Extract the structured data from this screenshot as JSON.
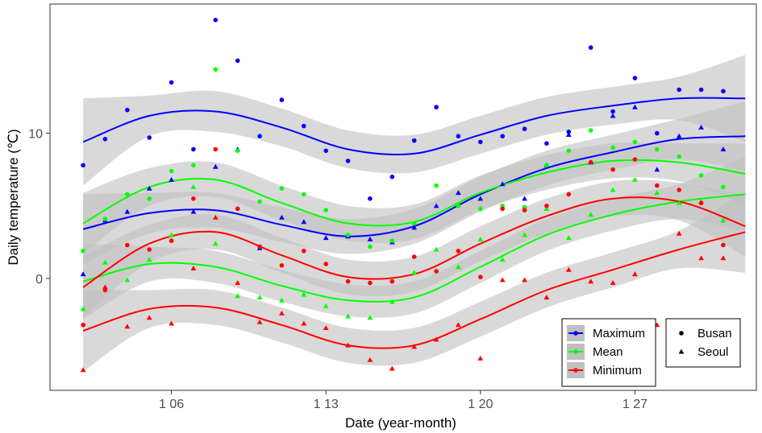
{
  "chart_data": {
    "type": "scatter",
    "title": "",
    "xlabel": "Date (year-month)",
    "ylabel": "Daily temperature (℃)",
    "x_ticks": [
      {
        "x": 6,
        "label": "1 06"
      },
      {
        "x": 13,
        "label": "1 13"
      },
      {
        "x": 20,
        "label": "1 20"
      },
      {
        "x": 27,
        "label": "1 27"
      }
    ],
    "y_ticks": [
      {
        "y": 0,
        "label": "0"
      },
      {
        "y": 10,
        "label": "10"
      }
    ],
    "xlim": [
      0.5,
      32.5
    ],
    "ylim": [
      -7.7,
      18.9
    ],
    "grid": false,
    "legend_placement": "bottom-right",
    "colors": {
      "Maximum": "#0000ff",
      "Mean": "#00ff00",
      "Minimum": "#ff0000",
      "band": "#bfbfbf"
    },
    "color_legend": [
      {
        "name": "Maximum",
        "color": "#0000ff"
      },
      {
        "name": "Mean",
        "color": "#00ff00"
      },
      {
        "name": "Minimum",
        "color": "#ff0000"
      }
    ],
    "shape_legend": [
      {
        "name": "Busan",
        "shape": "circle"
      },
      {
        "name": "Seoul",
        "shape": "triangle"
      }
    ],
    "points": [
      {
        "city": "Busan",
        "variable": "Maximum",
        "x": [
          2,
          3,
          4,
          5,
          6,
          7,
          8,
          9,
          10,
          11,
          12,
          13,
          14,
          15,
          16,
          17,
          18,
          19,
          20,
          21,
          22,
          23,
          24,
          25,
          26,
          27,
          28,
          29,
          30,
          31
        ],
        "y": [
          7.8,
          9.6,
          11.6,
          9.7,
          13.5,
          8.9,
          17.8,
          15.0,
          9.8,
          12.3,
          10.5,
          8.8,
          8.1,
          5.5,
          7.0,
          9.5,
          11.8,
          9.8,
          9.4,
          9.8,
          10.3,
          9.3,
          10.1,
          15.9,
          11.5,
          13.8,
          10.0,
          13.0,
          13.0,
          12.9
        ]
      },
      {
        "city": "Seoul",
        "variable": "Maximum",
        "x": [
          2,
          3,
          4,
          5,
          6,
          7,
          8,
          9,
          10,
          11,
          12,
          13,
          14,
          15,
          16,
          17,
          18,
          19,
          20,
          21,
          22,
          23,
          24,
          25,
          26,
          27,
          28,
          29,
          30,
          31
        ],
        "y": [
          0.3,
          4.0,
          4.6,
          6.2,
          6.8,
          4.6,
          7.7,
          8.9,
          2.1,
          4.2,
          3.9,
          2.8,
          2.9,
          2.7,
          2.5,
          3.5,
          5.0,
          5.9,
          5.5,
          6.5,
          5.5,
          7.8,
          9.9,
          8.0,
          11.2,
          11.8,
          7.5,
          9.8,
          10.4,
          8.9
        ]
      },
      {
        "city": "Busan",
        "variable": "Mean",
        "x": [
          2,
          3,
          4,
          5,
          6,
          7,
          8,
          9,
          10,
          11,
          12,
          13,
          14,
          15,
          16,
          17,
          18,
          19,
          20,
          21,
          22,
          23,
          24,
          25,
          26,
          27,
          28,
          29,
          30,
          31
        ],
        "y": [
          1.9,
          4.1,
          5.8,
          5.5,
          7.4,
          7.8,
          14.4,
          8.8,
          5.3,
          6.2,
          5.8,
          4.7,
          3.0,
          2.2,
          2.6,
          3.8,
          6.4,
          5.0,
          4.8,
          5.0,
          4.9,
          7.8,
          8.8,
          10.2,
          9.0,
          9.4,
          8.9,
          8.4,
          7.1,
          6.3
        ]
      },
      {
        "city": "Seoul",
        "variable": "Mean",
        "x": [
          2,
          3,
          4,
          5,
          6,
          7,
          8,
          9,
          10,
          11,
          12,
          13,
          14,
          15,
          16,
          17,
          18,
          19,
          20,
          21,
          22,
          23,
          24,
          25,
          26,
          27,
          28,
          29,
          30,
          31
        ],
        "y": [
          -2.1,
          1.1,
          -0.1,
          1.3,
          3.0,
          6.3,
          2.4,
          -1.2,
          -1.3,
          -1.5,
          -1.1,
          -1.9,
          -2.6,
          -2.7,
          -1.6,
          0.4,
          2.0,
          0.8,
          2.7,
          1.3,
          3.0,
          4.8,
          2.8,
          4.4,
          6.1,
          6.8,
          5.9,
          5.2,
          5.3,
          4.0
        ]
      },
      {
        "city": "Busan",
        "variable": "Minimum",
        "x": [
          2,
          3,
          4,
          5,
          6,
          7,
          8,
          9,
          10,
          11,
          12,
          13,
          14,
          15,
          16,
          17,
          18,
          19,
          20,
          21,
          22,
          23,
          24,
          25,
          26,
          27,
          28,
          29,
          30,
          31
        ],
        "y": [
          -3.2,
          -0.8,
          2.3,
          2.0,
          2.6,
          5.5,
          8.9,
          4.8,
          2.2,
          0.9,
          1.9,
          1.0,
          -0.2,
          -0.3,
          -0.2,
          1.5,
          0.5,
          1.9,
          0.1,
          4.8,
          4.7,
          5.0,
          5.8,
          8.0,
          7.5,
          8.2,
          6.4,
          6.1,
          5.2,
          2.3
        ]
      },
      {
        "city": "Seoul",
        "variable": "Minimum",
        "x": [
          2,
          3,
          4,
          5,
          6,
          7,
          8,
          9,
          10,
          11,
          12,
          13,
          14,
          15,
          16,
          17,
          18,
          19,
          20,
          21,
          22,
          23,
          24,
          25,
          26,
          27,
          28,
          29,
          30,
          31
        ],
        "y": [
          -6.3,
          -0.6,
          -3.3,
          -2.7,
          -3.1,
          0.7,
          4.2,
          -0.3,
          -3.0,
          -2.4,
          -3.1,
          -3.4,
          -4.6,
          -5.6,
          -6.2,
          -4.7,
          -4.2,
          -3.2,
          -5.5,
          -0.1,
          -0.1,
          -1.3,
          0.6,
          -0.2,
          -0.3,
          0.3,
          -3.2,
          3.1,
          1.4,
          1.4
        ]
      }
    ],
    "smooth_x": [
      2,
      5,
      8,
      11,
      14,
      17,
      20,
      23,
      26,
      29,
      32
    ],
    "smooth_series": [
      {
        "city": "Busan",
        "variable": "Maximum",
        "y": [
          9.4,
          11.2,
          11.5,
          10.4,
          8.9,
          8.6,
          9.9,
          11.2,
          11.9,
          12.4,
          12.4
        ],
        "ci": [
          3.0,
          1.4,
          1.4,
          1.3,
          1.3,
          1.3,
          1.3,
          1.3,
          1.3,
          1.5,
          3.0
        ]
      },
      {
        "city": "Seoul",
        "variable": "Maximum",
        "y": [
          3.4,
          4.5,
          4.7,
          3.7,
          2.9,
          3.6,
          5.8,
          7.6,
          8.7,
          9.6,
          9.8
        ],
        "ci": [
          2.4,
          1.4,
          1.2,
          1.2,
          1.2,
          1.2,
          1.2,
          1.2,
          1.2,
          1.4,
          2.4
        ]
      },
      {
        "city": "Busan",
        "variable": "Mean",
        "y": [
          3.8,
          6.3,
          6.8,
          5.2,
          3.8,
          3.9,
          5.9,
          7.3,
          8.1,
          8.0,
          7.2
        ],
        "ci": [
          2.1,
          1.3,
          1.2,
          1.2,
          1.2,
          1.2,
          1.2,
          1.2,
          1.2,
          1.3,
          2.1
        ]
      },
      {
        "city": "Seoul",
        "variable": "Mean",
        "y": [
          -0.2,
          1.0,
          0.8,
          -0.5,
          -1.5,
          -1.3,
          0.8,
          3.0,
          4.4,
          5.3,
          5.8
        ],
        "ci": [
          2.6,
          1.2,
          1.1,
          1.1,
          1.1,
          1.1,
          1.1,
          1.1,
          1.1,
          1.2,
          2.6
        ]
      },
      {
        "city": "Busan",
        "variable": "Minimum",
        "y": [
          -0.6,
          2.4,
          3.2,
          1.6,
          0.1,
          0.3,
          2.4,
          4.3,
          5.5,
          5.3,
          3.6
        ],
        "ci": [
          2.1,
          1.3,
          1.2,
          1.2,
          1.2,
          1.2,
          1.2,
          1.2,
          1.2,
          1.3,
          2.1
        ]
      },
      {
        "city": "Seoul",
        "variable": "Minimum",
        "y": [
          -3.6,
          -2.1,
          -2.0,
          -3.2,
          -4.6,
          -4.6,
          -2.8,
          -0.8,
          0.6,
          2.0,
          3.2
        ],
        "ci": [
          2.8,
          1.3,
          1.2,
          1.2,
          1.2,
          1.2,
          1.2,
          1.2,
          1.2,
          1.3,
          2.8
        ]
      }
    ]
  }
}
